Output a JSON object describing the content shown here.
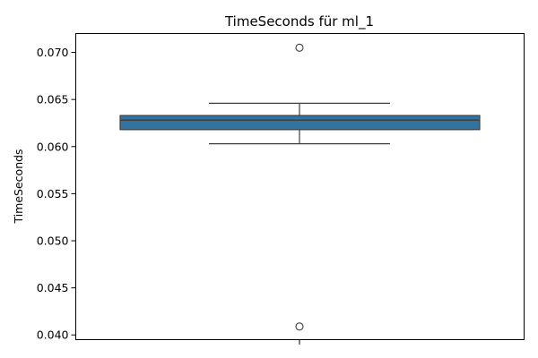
{
  "chart_data": {
    "type": "box",
    "title": "TimeSeconds für ml_1",
    "xlabel": "",
    "ylabel": "TimeSeconds",
    "ylim": [
      0.0395,
      0.072
    ],
    "yticks": [
      "0.040",
      "0.045",
      "0.050",
      "0.055",
      "0.060",
      "0.065",
      "0.070"
    ],
    "grid": false,
    "series": [
      {
        "whisker_low": 0.0603,
        "q1": 0.0618,
        "median": 0.0628,
        "q3": 0.0633,
        "whisker_high": 0.0646,
        "outliers": [
          0.0705,
          0.0409
        ]
      }
    ],
    "colors": {
      "box_fill": "#3274a1",
      "line": "#3f3f3f"
    }
  }
}
